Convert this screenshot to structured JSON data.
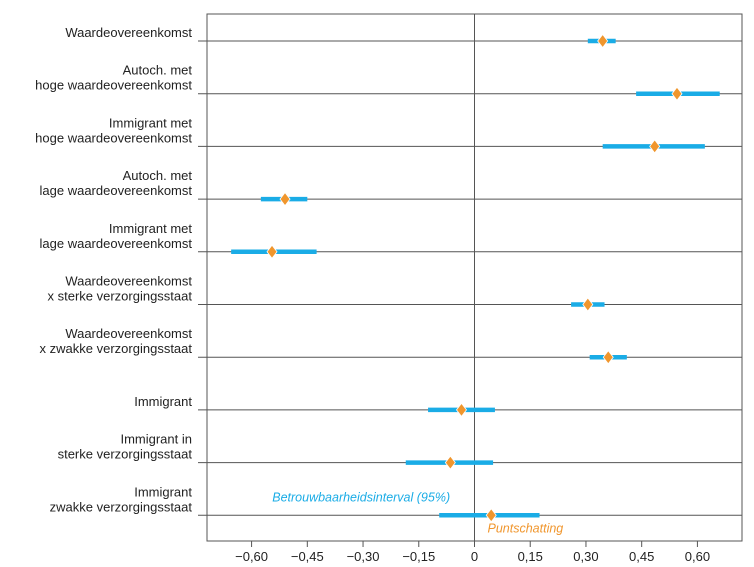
{
  "chart_data": {
    "type": "forest",
    "orientation": "horizontal",
    "categories": [
      [
        "Waardeovereenkomst"
      ],
      [
        "Autoch. met",
        "hoge waardeovereenkomst"
      ],
      [
        "Immigrant met",
        "hoge waardeovereenkomst"
      ],
      [
        "Autoch. met",
        "lage waardeovereenkomst"
      ],
      [
        "Immigrant met",
        "lage waardeovereenkomst"
      ],
      [
        "Waardeovereenkomst",
        "x sterke verzorgingsstaat"
      ],
      [
        "Waardeovereenkomst",
        "x zwakke verzorgingsstaat"
      ],
      [
        "Immigrant"
      ],
      [
        "Immigrant in",
        "sterke verzorgingsstaat"
      ],
      [
        "Immigrant",
        "zwakke verzorgingsstaat"
      ]
    ],
    "series": [
      {
        "estimate": [
          0.345,
          0.545,
          0.485,
          -0.51,
          -0.545,
          0.305,
          0.36,
          -0.035,
          -0.065,
          0.045
        ],
        "ci_low": [
          0.305,
          0.435,
          0.345,
          -0.575,
          -0.655,
          0.26,
          0.31,
          -0.125,
          -0.185,
          -0.095
        ],
        "ci_high": [
          0.38,
          0.66,
          0.62,
          -0.45,
          -0.425,
          0.35,
          0.41,
          0.055,
          0.05,
          0.175
        ]
      }
    ],
    "xlim": [
      -0.72,
      0.72
    ],
    "xticks": [
      -0.6,
      -0.45,
      -0.3,
      -0.15,
      0,
      0.15,
      0.3,
      0.45,
      0.6
    ],
    "xtick_labels": [
      "−0,60",
      "−0,45",
      "−0,30",
      "−0,15",
      "0",
      "0,15",
      "0,30",
      "0,45",
      "0,60"
    ],
    "annotations": {
      "ci_label": "Betrouwbaarheidsinterval (95%)",
      "point_label": "Puntschatting"
    },
    "colors": {
      "ci": "#1aace6",
      "point": "#f0962d",
      "grid": "#555555",
      "text": "#222222"
    },
    "grid": true,
    "legend": "none"
  }
}
